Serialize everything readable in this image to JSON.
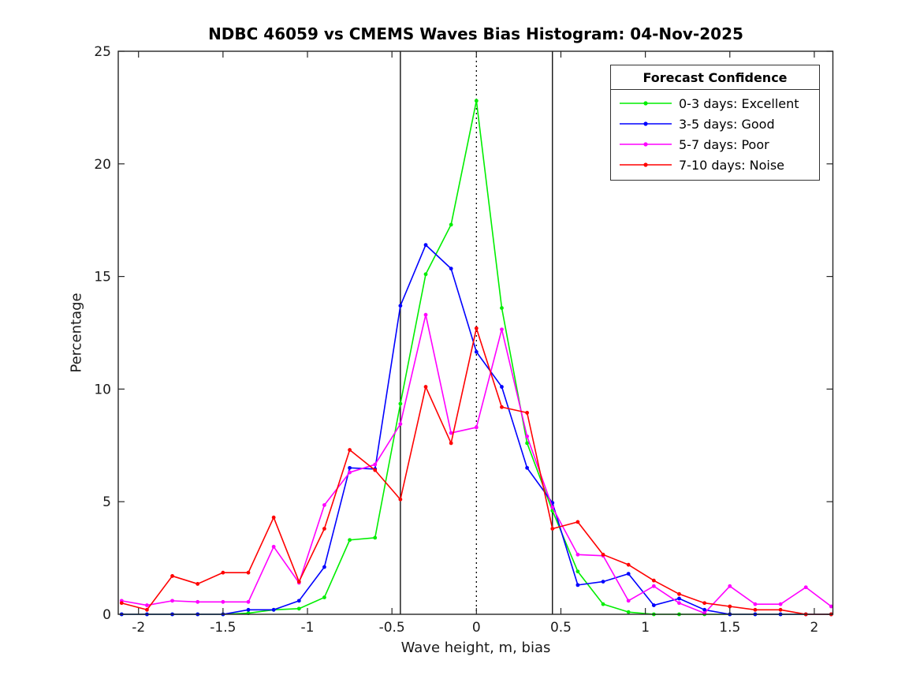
{
  "figure": {
    "title": "NDBC 46059 vs CMEMS Waves Bias Histogram: 04-Nov-2025"
  },
  "chart_data": {
    "type": "line",
    "title": "NDBC 46059 vs CMEMS Waves Bias Histogram: 04-Nov-2025",
    "xlabel": "Wave height, m, bias",
    "ylabel": "Percentage",
    "xlim": [
      -2.12,
      2.11
    ],
    "ylim": [
      0,
      25
    ],
    "xticks": [
      -2,
      -1.5,
      -1,
      -0.5,
      0,
      0.5,
      1,
      1.5,
      2
    ],
    "xtick_labels": [
      "-2",
      "-1.5",
      "-1",
      "-0.5",
      "0",
      "0.5",
      "1",
      "1.5",
      "2"
    ],
    "yticks": [
      0,
      5,
      10,
      15,
      20,
      25
    ],
    "ytick_labels": [
      "0",
      "5",
      "10",
      "15",
      "20",
      "25"
    ],
    "grid": false,
    "marker": "dot",
    "x": [
      -2.1,
      -1.95,
      -1.8,
      -1.65,
      -1.5,
      -1.35,
      -1.2,
      -1.05,
      -0.9,
      -0.75,
      -0.6,
      -0.45,
      -0.3,
      -0.15,
      0,
      0.15,
      0.3,
      0.45,
      0.6,
      0.75,
      0.9,
      1.05,
      1.2,
      1.35,
      1.5,
      1.65,
      1.8,
      1.95,
      2.1
    ],
    "series": [
      {
        "name": "0-3 days: Excellent",
        "color": "#00ee00",
        "values": [
          0,
          0,
          0,
          0,
          0,
          0.05,
          0.2,
          0.25,
          0.75,
          3.3,
          3.4,
          9.35,
          15.1,
          17.3,
          22.8,
          13.6,
          7.6,
          4.6,
          1.9,
          0.45,
          0.1,
          0,
          0,
          0,
          0,
          0,
          0,
          0,
          0
        ]
      },
      {
        "name": "3-5 days: Good",
        "color": "#0000ff",
        "values": [
          0,
          0,
          0,
          0,
          0,
          0.2,
          0.2,
          0.6,
          2.1,
          6.5,
          6.45,
          13.7,
          16.4,
          15.35,
          11.65,
          10.1,
          6.5,
          4.95,
          1.3,
          1.45,
          1.8,
          0.4,
          0.7,
          0.2,
          0,
          0,
          0,
          0,
          0
        ]
      },
      {
        "name": "5-7 days: Poor",
        "color": "#ff00ff",
        "values": [
          0.6,
          0.4,
          0.6,
          0.55,
          0.55,
          0.55,
          3.0,
          1.4,
          4.85,
          6.3,
          6.65,
          8.45,
          13.3,
          8.05,
          8.3,
          12.65,
          7.9,
          4.75,
          2.65,
          2.6,
          0.6,
          1.25,
          0.5,
          0.05,
          1.25,
          0.45,
          0.45,
          1.2,
          0.35
        ]
      },
      {
        "name": "7-10 days: Noise",
        "color": "#ff0000",
        "values": [
          0.5,
          0.2,
          1.7,
          1.35,
          1.85,
          1.85,
          4.3,
          1.45,
          3.8,
          7.3,
          6.4,
          5.1,
          10.1,
          7.6,
          12.7,
          9.2,
          8.95,
          3.8,
          4.1,
          2.65,
          2.2,
          1.5,
          0.9,
          0.5,
          0.35,
          0.2,
          0.2,
          0,
          0
        ]
      }
    ],
    "vlines": [
      {
        "x": -0.45,
        "style": "solid",
        "color": "#000000"
      },
      {
        "x": 0,
        "style": "dotted",
        "color": "#000000"
      },
      {
        "x": 0.45,
        "style": "solid",
        "color": "#000000"
      }
    ],
    "legend": {
      "title": "Forecast Confidence",
      "position": "top-right"
    }
  }
}
